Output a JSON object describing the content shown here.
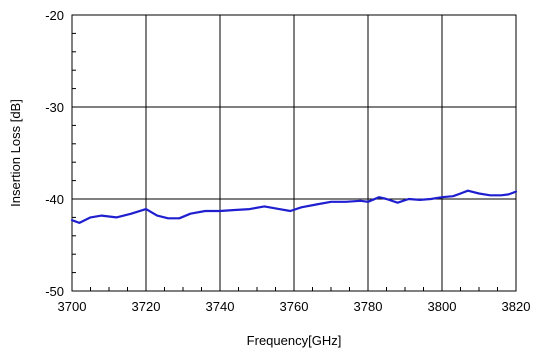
{
  "chart_data": {
    "type": "line",
    "title": "",
    "xlabel": "Frequency[GHz]",
    "ylabel": "Insertion Loss [dB]",
    "xlim": [
      3700,
      3820
    ],
    "ylim": [
      -50,
      -20
    ],
    "x_ticks": [
      3700,
      3720,
      3740,
      3760,
      3780,
      3800,
      3820
    ],
    "x_tick_labels": [
      "3700",
      "3720",
      "3740",
      "3760",
      "3780",
      "3800",
      "3820"
    ],
    "y_ticks": [
      -50,
      -40,
      -30,
      -20
    ],
    "y_tick_labels": [
      "-50",
      "-40",
      "-30",
      "-20"
    ],
    "grid": true,
    "series": [
      {
        "color": "#1f1fd0",
        "x": [
          3700,
          3702,
          3705,
          3708,
          3712,
          3716,
          3720,
          3723,
          3726,
          3729,
          3732,
          3736,
          3740,
          3744,
          3748,
          3752,
          3756,
          3759,
          3762,
          3766,
          3770,
          3774,
          3778,
          3780,
          3783,
          3785,
          3788,
          3791,
          3794,
          3797,
          3800,
          3803,
          3805,
          3807,
          3810,
          3813,
          3816,
          3818,
          3820
        ],
        "y": [
          -42.3,
          -42.6,
          -42.0,
          -41.8,
          -42.0,
          -41.6,
          -41.1,
          -41.8,
          -42.1,
          -42.1,
          -41.6,
          -41.3,
          -41.3,
          -41.2,
          -41.1,
          -40.8,
          -41.1,
          -41.3,
          -40.9,
          -40.6,
          -40.3,
          -40.3,
          -40.2,
          -40.3,
          -39.8,
          -40.0,
          -40.4,
          -40.0,
          -40.1,
          -40.0,
          -39.8,
          -39.7,
          -39.4,
          -39.1,
          -39.4,
          -39.6,
          -39.6,
          -39.5,
          -39.2
        ]
      }
    ]
  }
}
